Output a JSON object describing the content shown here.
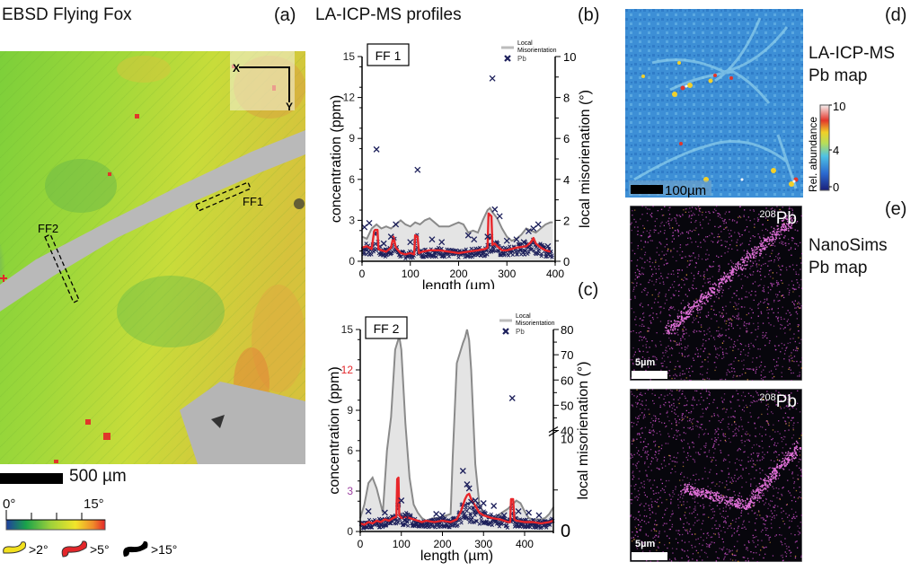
{
  "panels": {
    "a": {
      "title": "EBSD Flying Fox",
      "label": "(a)",
      "axis_x": "X",
      "axis_y": "Y",
      "profile_labels": [
        "FF1",
        "FF2"
      ],
      "scale_bar": "500 µm",
      "colorbar": {
        "min_label": "0°",
        "max_label": "15°",
        "colors": [
          "#1f3fa0",
          "#1aa34a",
          "#9ed13a",
          "#f2e52a",
          "#f08a2a",
          "#e3262a"
        ]
      },
      "boundary_legend": [
        {
          "label": ">2°",
          "color": "#f2e01e"
        },
        {
          "label": ">5°",
          "color": "#e3262a"
        },
        {
          "label": ">15°",
          "color": "#000000"
        }
      ]
    },
    "b": {
      "section_title": "LA-ICP-MS profiles",
      "label": "(b)"
    },
    "c": {
      "label": "(c)"
    },
    "d": {
      "label": "(d)",
      "title_line1": "LA-ICP-MS",
      "title_line2": "Pb map",
      "scale_bar": "100µm",
      "colorbar": {
        "title": "Rel. abundance",
        "ticks": [
          "10",
          "4",
          "0"
        ]
      }
    },
    "e": {
      "label": "(e)",
      "title_line1": "NanoSims",
      "title_line2": "Pb map",
      "isotope_sup": "208",
      "isotope": "Pb",
      "scale_bar": "5µm"
    }
  },
  "chart_data": [
    {
      "type": "line",
      "id": "FF1",
      "title": "FF 1",
      "xlabel": "length (µm)",
      "ylabel": "concentration (ppm)",
      "y2label": "local misorienation (°)",
      "xlim": [
        0,
        400
      ],
      "ylim": [
        0,
        15
      ],
      "y2lim": [
        0,
        10
      ],
      "xticks": [
        0,
        100,
        200,
        300,
        400
      ],
      "yticks": [
        0,
        3,
        6,
        9,
        12,
        15
      ],
      "y2ticks": [
        0,
        2,
        4,
        6,
        8,
        10
      ],
      "legend": {
        "position": "top-right",
        "entries": [
          "Local Misorientation",
          "Pb"
        ]
      },
      "series": [
        {
          "name": "Local Misorientation",
          "axis": "y2",
          "style": "filled-area",
          "x": [
            0,
            10,
            20,
            30,
            40,
            50,
            60,
            70,
            80,
            90,
            100,
            110,
            120,
            130,
            140,
            150,
            160,
            170,
            180,
            190,
            200,
            210,
            220,
            230,
            240,
            250,
            260,
            265,
            270,
            280,
            290,
            300,
            310,
            320,
            330,
            340,
            350,
            360,
            370,
            380,
            390,
            395
          ],
          "values": [
            1.2,
            1.1,
            1.6,
            1.8,
            1.6,
            1.7,
            1.6,
            1.8,
            2.0,
            1.8,
            1.7,
            1.9,
            1.8,
            2.0,
            2.1,
            1.9,
            1.7,
            1.7,
            1.7,
            1.8,
            1.9,
            1.8,
            1.4,
            1.5,
            1.4,
            2.0,
            2.5,
            2.6,
            2.4,
            2.1,
            1.6,
            1.2,
            1.0,
            1.1,
            1.3,
            1.6,
            1.5,
            1.4,
            1.6,
            1.8,
            1.9,
            1.9
          ]
        },
        {
          "name": "Pb smoothed",
          "axis": "y",
          "style": "red-line",
          "x": [
            0,
            10,
            20,
            25,
            27,
            32,
            34,
            40,
            50,
            60,
            65,
            70,
            80,
            90,
            100,
            108,
            110,
            115,
            118,
            125,
            140,
            160,
            180,
            200,
            220,
            240,
            255,
            260,
            262,
            268,
            270,
            275,
            280,
            290,
            300,
            320,
            340,
            350,
            355,
            360,
            370,
            380,
            390
          ],
          "values": [
            1.0,
            1.1,
            0.9,
            2.2,
            2.3,
            2.3,
            0.9,
            0.8,
            0.7,
            1.0,
            1.8,
            1.0,
            0.6,
            0.5,
            0.6,
            0.5,
            1.9,
            1.8,
            0.6,
            0.7,
            0.8,
            0.8,
            0.7,
            0.6,
            0.7,
            0.8,
            0.9,
            1.0,
            3.5,
            3.3,
            1.2,
            1.3,
            1.1,
            0.8,
            0.8,
            1.0,
            1.1,
            1.4,
            1.7,
            1.3,
            1.0,
            0.8,
            0.7
          ]
        },
        {
          "name": "Pb",
          "axis": "y",
          "style": "markers-x",
          "x": [
            5,
            15,
            30,
            45,
            60,
            70,
            100,
            115,
            145,
            165,
            220,
            232,
            260,
            270,
            275,
            285,
            300,
            320,
            335,
            345,
            355,
            365,
            385
          ],
          "values": [
            2.5,
            2.8,
            8.2,
            1.3,
            1.8,
            2.7,
            1.4,
            6.7,
            1.6,
            1.4,
            1.9,
            1.6,
            1.8,
            13.4,
            3.8,
            3.3,
            1.5,
            1.6,
            1.4,
            2.2,
            2.4,
            2.7,
            1.1
          ]
        }
      ]
    },
    {
      "type": "line",
      "id": "FF2",
      "title": "FF 2",
      "xlabel": "length (µm)",
      "ylabel": "concentration (ppm)",
      "y2label": "local misorienation (°)",
      "xlim": [
        0,
        470
      ],
      "ylim": [
        0,
        15
      ],
      "y2_break": "10 / 40",
      "xticks": [
        0,
        100,
        200,
        300,
        400
      ],
      "yticks": [
        0,
        3,
        6,
        9,
        12,
        15
      ],
      "ytick_colors": {
        "3": "#9b3fa0",
        "12": "#e3262a"
      },
      "y2ticks_upper": [
        40,
        50,
        60,
        70,
        80
      ],
      "y2ticks_lower": [
        0,
        10
      ],
      "legend": {
        "position": "top-right",
        "entries": [
          "Local Misorientation",
          "Pb"
        ]
      },
      "series": [
        {
          "name": "Local Misorientation",
          "axis": "y2-broken",
          "style": "filled-area",
          "x": [
            0,
            10,
            20,
            30,
            40,
            50,
            55,
            65,
            75,
            85,
            95,
            100,
            110,
            120,
            130,
            140,
            150,
            160,
            170,
            180,
            190,
            200,
            210,
            220,
            225,
            235,
            245,
            250,
            255,
            260,
            265,
            270,
            280,
            290,
            300,
            305,
            310,
            320,
            330,
            340,
            350,
            360,
            370,
            380,
            390,
            400,
            410,
            420,
            430,
            440,
            450,
            460,
            470
          ],
          "values_ppm_scale": [
            1.0,
            2.0,
            3.6,
            4.0,
            3.2,
            2.0,
            1.4,
            6.0,
            8.5,
            13.5,
            14.5,
            13.5,
            8.0,
            4.0,
            2.0,
            1.4,
            1.0,
            0.8,
            0.9,
            1.0,
            1.0,
            1.1,
            1.2,
            1.3,
            5.5,
            12.5,
            13.5,
            14.0,
            14.4,
            15.0,
            14.2,
            12.0,
            5.0,
            2.0,
            1.4,
            1.2,
            1.0,
            1.0,
            1.1,
            1.3,
            1.5,
            1.7,
            2.0,
            2.3,
            2.1,
            1.5,
            1.0,
            0.9,
            0.9,
            0.9,
            1.0,
            1.3,
            1.8
          ]
        },
        {
          "name": "Pb smoothed",
          "axis": "y",
          "style": "red-line",
          "x": [
            0,
            10,
            20,
            30,
            40,
            50,
            60,
            70,
            80,
            88,
            90,
            93,
            95,
            100,
            110,
            120,
            130,
            140,
            150,
            160,
            180,
            200,
            220,
            235,
            245,
            255,
            260,
            265,
            270,
            280,
            290,
            300,
            320,
            340,
            360,
            365,
            367,
            372,
            375,
            380,
            400,
            420,
            440,
            460,
            470
          ],
          "values": [
            0.6,
            0.5,
            0.7,
            0.6,
            0.8,
            0.7,
            0.9,
            0.8,
            1.0,
            1.1,
            3.9,
            4.0,
            1.2,
            1.0,
            1.1,
            1.0,
            0.9,
            0.8,
            0.7,
            0.8,
            0.7,
            0.8,
            0.7,
            0.9,
            1.5,
            2.4,
            2.7,
            2.8,
            2.4,
            1.9,
            1.4,
            1.2,
            1.0,
            0.9,
            0.7,
            0.7,
            2.4,
            2.4,
            0.9,
            0.8,
            0.7,
            0.7,
            0.6,
            0.7,
            0.8
          ]
        },
        {
          "name": "Pb",
          "axis": "y",
          "style": "markers-x",
          "x": [
            20,
            60,
            85,
            100,
            110,
            185,
            200,
            250,
            260,
            265,
            270,
            280,
            300,
            325,
            350,
            370,
            385,
            410,
            435
          ],
          "values": [
            1.5,
            1.4,
            14.6,
            2.3,
            1.2,
            1.3,
            1.2,
            4.5,
            3.5,
            3.2,
            2.2,
            2.3,
            2.1,
            1.9,
            1.2,
            9.9,
            1.5,
            1.4,
            1.2
          ]
        }
      ]
    }
  ]
}
